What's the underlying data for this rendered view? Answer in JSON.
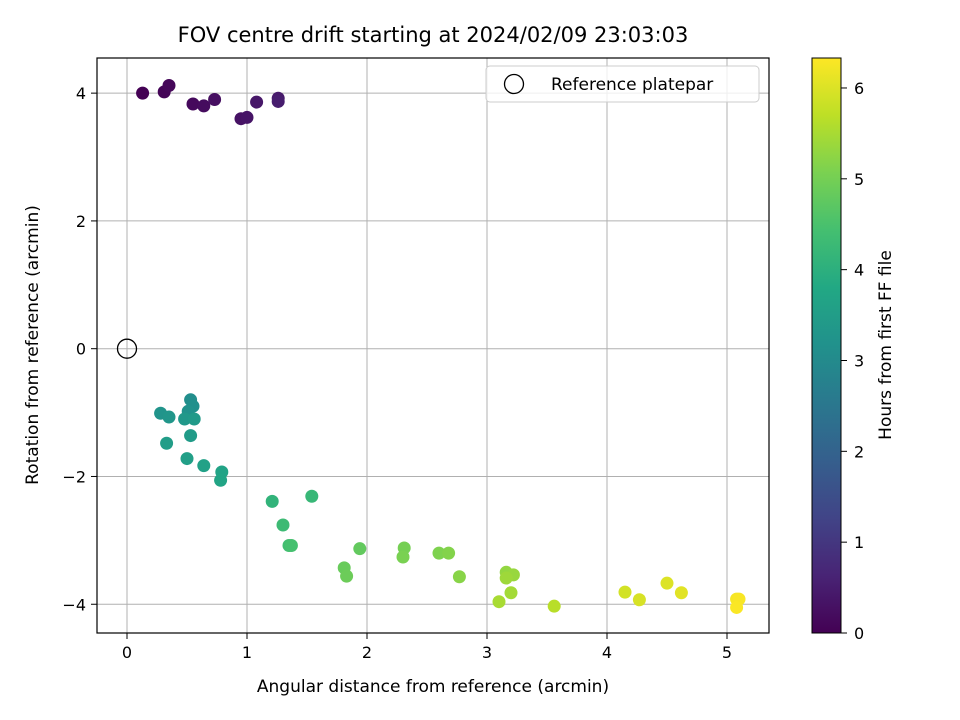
{
  "chart_data": {
    "type": "scatter",
    "title": "FOV centre drift starting at 2024/02/09 23:03:03",
    "xlabel": "Angular distance from reference (arcmin)",
    "ylabel": "Rotation from reference (arcmin)",
    "xlim": [
      -0.25,
      5.35
    ],
    "ylim": [
      -4.45,
      4.55
    ],
    "xticks": [
      0,
      1,
      2,
      3,
      4,
      5
    ],
    "xtick_labels": [
      "0",
      "1",
      "2",
      "3",
      "4",
      "5"
    ],
    "yticks": [
      -4,
      -2,
      0,
      2,
      4
    ],
    "ytick_labels": [
      "−4",
      "−2",
      "0",
      "2",
      "4"
    ],
    "grid": true,
    "colormap": "viridis",
    "colorbar": {
      "label": "Hours from first FF file",
      "range": [
        0,
        6.33
      ],
      "ticks": [
        0,
        1,
        2,
        3,
        4,
        5,
        6
      ],
      "tick_labels": [
        "0",
        "1",
        "2",
        "3",
        "4",
        "5",
        "6"
      ]
    },
    "legend": {
      "position": "top-right",
      "entries": [
        "Reference platepar"
      ]
    },
    "reference_point": {
      "x": 0,
      "y": 0,
      "label": "Reference platepar"
    },
    "points": [
      {
        "x": 0.13,
        "y": 4.0,
        "c": 0.0
      },
      {
        "x": 0.31,
        "y": 4.02,
        "c": 0.05
      },
      {
        "x": 0.35,
        "y": 4.12,
        "c": 0.1
      },
      {
        "x": 0.55,
        "y": 3.83,
        "c": 0.15
      },
      {
        "x": 0.64,
        "y": 3.8,
        "c": 0.2
      },
      {
        "x": 0.73,
        "y": 3.9,
        "c": 0.25
      },
      {
        "x": 0.95,
        "y": 3.6,
        "c": 0.3
      },
      {
        "x": 1.0,
        "y": 3.62,
        "c": 0.35
      },
      {
        "x": 1.08,
        "y": 3.86,
        "c": 0.4
      },
      {
        "x": 1.26,
        "y": 3.92,
        "c": 0.45
      },
      {
        "x": 1.26,
        "y": 3.87,
        "c": 0.5
      },
      {
        "x": 0.53,
        "y": -0.8,
        "c": 3.1
      },
      {
        "x": 0.55,
        "y": -0.9,
        "c": 3.15
      },
      {
        "x": 0.51,
        "y": -0.98,
        "c": 3.2
      },
      {
        "x": 0.28,
        "y": -1.01,
        "c": 3.25
      },
      {
        "x": 0.35,
        "y": -1.07,
        "c": 3.3
      },
      {
        "x": 0.48,
        "y": -1.1,
        "c": 3.35
      },
      {
        "x": 0.56,
        "y": -1.1,
        "c": 3.4
      },
      {
        "x": 0.53,
        "y": -1.36,
        "c": 3.45
      },
      {
        "x": 0.33,
        "y": -1.48,
        "c": 3.5
      },
      {
        "x": 0.5,
        "y": -1.72,
        "c": 3.55
      },
      {
        "x": 0.64,
        "y": -1.83,
        "c": 3.6
      },
      {
        "x": 0.79,
        "y": -1.93,
        "c": 3.65
      },
      {
        "x": 0.78,
        "y": -2.06,
        "c": 3.7
      },
      {
        "x": 1.21,
        "y": -2.39,
        "c": 4.1
      },
      {
        "x": 1.54,
        "y": -2.31,
        "c": 4.2
      },
      {
        "x": 1.3,
        "y": -2.76,
        "c": 4.3
      },
      {
        "x": 1.35,
        "y": -3.08,
        "c": 4.4
      },
      {
        "x": 1.37,
        "y": -3.08,
        "c": 4.45
      },
      {
        "x": 1.94,
        "y": -3.13,
        "c": 4.8
      },
      {
        "x": 1.81,
        "y": -3.43,
        "c": 4.85
      },
      {
        "x": 1.83,
        "y": -3.56,
        "c": 4.9
      },
      {
        "x": 2.31,
        "y": -3.12,
        "c": 5.0
      },
      {
        "x": 2.3,
        "y": -3.26,
        "c": 5.05
      },
      {
        "x": 2.6,
        "y": -3.2,
        "c": 5.1
      },
      {
        "x": 2.68,
        "y": -3.2,
        "c": 5.15
      },
      {
        "x": 2.77,
        "y": -3.57,
        "c": 5.2
      },
      {
        "x": 3.16,
        "y": -3.5,
        "c": 5.3
      },
      {
        "x": 3.22,
        "y": -3.54,
        "c": 5.35
      },
      {
        "x": 3.16,
        "y": -3.59,
        "c": 5.4
      },
      {
        "x": 3.2,
        "y": -3.82,
        "c": 5.45
      },
      {
        "x": 3.1,
        "y": -3.96,
        "c": 5.5
      },
      {
        "x": 3.56,
        "y": -4.03,
        "c": 5.65
      },
      {
        "x": 4.15,
        "y": -3.81,
        "c": 5.9
      },
      {
        "x": 4.27,
        "y": -3.93,
        "c": 5.95
      },
      {
        "x": 4.5,
        "y": -3.67,
        "c": 6.0
      },
      {
        "x": 4.62,
        "y": -3.82,
        "c": 6.05
      },
      {
        "x": 5.08,
        "y": -3.92,
        "c": 6.25
      },
      {
        "x": 5.1,
        "y": -3.92,
        "c": 6.28
      },
      {
        "x": 5.08,
        "y": -4.05,
        "c": 6.3
      }
    ]
  }
}
